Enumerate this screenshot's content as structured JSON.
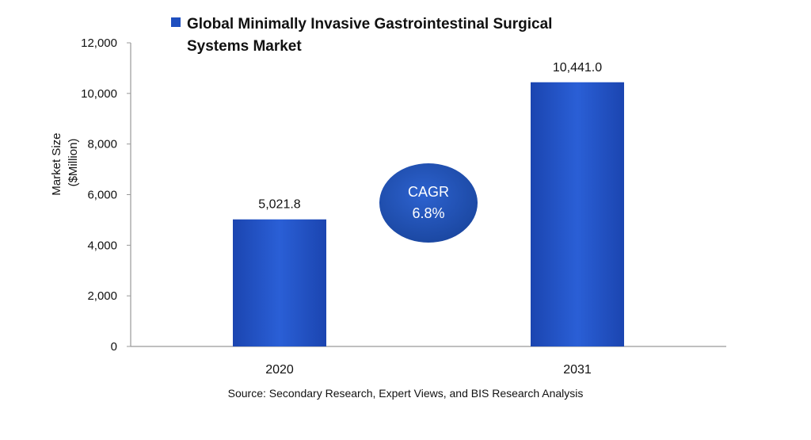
{
  "chart_data": {
    "type": "bar",
    "categories": [
      "2020",
      "2031"
    ],
    "series": [
      {
        "name": "Global Minimally Invasive Gastrointestinal Surgical Systems Market",
        "values": [
          5021.8,
          10441.0
        ]
      }
    ],
    "data_labels": [
      "5,021.8",
      "10,441.0"
    ],
    "ylabel": "Market Size ($Million)",
    "ylim": [
      0,
      12000
    ],
    "yticks": [
      0,
      2000,
      4000,
      6000,
      8000,
      10000,
      12000
    ],
    "ytick_labels": [
      "0",
      "2,000",
      "4,000",
      "6,000",
      "8,000",
      "10,000",
      "12,000"
    ],
    "grid": false,
    "legend_position": "top",
    "annotation": {
      "line1": "CAGR",
      "line2": "6.8%"
    }
  },
  "legend_lines": [
    "Global Minimally Invasive Gastrointestinal Surgical",
    "Systems Market"
  ],
  "source": "Source: Secondary Research, Expert Views, and BIS Research Analysis",
  "colors": {
    "bar": "#1f4fbf",
    "bar_light": "#2a62d8",
    "cagr": "#1d4fb0",
    "axis": "#999999"
  }
}
